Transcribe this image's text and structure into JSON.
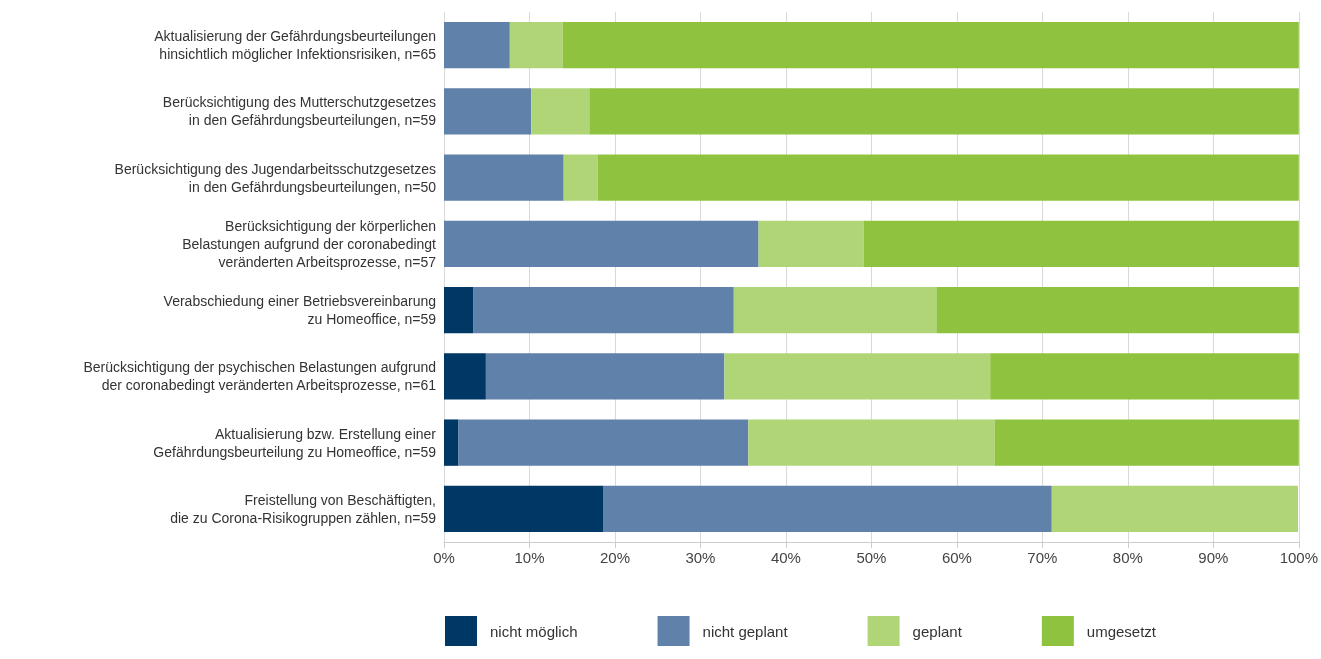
{
  "chart_data": {
    "type": "bar",
    "orientation": "horizontal",
    "stacked": true,
    "categories": [
      "Aktualisierung der Gefährdungsbeurteilungen\nhinsichtlich möglicher Infektionsrisiken, n=65",
      "Berücksichtigung des Mutterschutzgesetzes\nin den Gefährdungsbeurteilungen, n=59",
      "Berücksichtigung des Jugendarbeitsschutzgesetzes\nin den Gefährdungsbeurteilungen, n=50",
      "Berücksichtigung der körperlichen\nBelastungen aufgrund der coronabedingt\nveränderten Arbeitsprozesse, n=57",
      "Verabschiedung einer Betriebsvereinbarung\nzu Homeoffice, n=59",
      "Berücksichtigung der psychischen Belastungen aufgrund\nder coronabedingt veränderten Arbeitsprozesse, n=61",
      "Aktualisierung bzw. Erstellung einer\nGefährdungsbeurteilung zu Homeoffice, n=59",
      "Freistellung von Beschäftigten,\ndie zu Corona-Risikogruppen zählen, n=59"
    ],
    "series": [
      {
        "name": "nicht möglich",
        "color": "#003865",
        "values": [
          0,
          0,
          0,
          0,
          3.4,
          4.9,
          1.7,
          18.6
        ]
      },
      {
        "name": "nicht geplant",
        "color": "#6081aa",
        "values": [
          7.7,
          10.2,
          14,
          36.8,
          30.5,
          27.9,
          33.9,
          52.5
        ]
      },
      {
        "name": "geplant",
        "color": "#b0d577",
        "values": [
          6.2,
          6.8,
          4,
          12.3,
          23.7,
          31.1,
          28.8,
          28.8
        ]
      },
      {
        "name": "umgesetzt",
        "color": "#8fc33f",
        "values": [
          86.1,
          83,
          82,
          50.9,
          42.4,
          36.1,
          35.6,
          0
        ]
      }
    ],
    "xlim": [
      0,
      100
    ],
    "xticks": [
      {
        "value": 0,
        "label": "0%"
      },
      {
        "value": 10,
        "label": "10%"
      },
      {
        "value": 20,
        "label": "20%"
      },
      {
        "value": 30,
        "label": "30%"
      },
      {
        "value": 40,
        "label": "40%"
      },
      {
        "value": 50,
        "label": "50%"
      },
      {
        "value": 60,
        "label": "60%"
      },
      {
        "value": 70,
        "label": "70%"
      },
      {
        "value": 80,
        "label": "80%"
      },
      {
        "value": 90,
        "label": "90%"
      },
      {
        "value": 100,
        "label": "100%"
      }
    ],
    "grid": "x",
    "legend": "bottom"
  }
}
